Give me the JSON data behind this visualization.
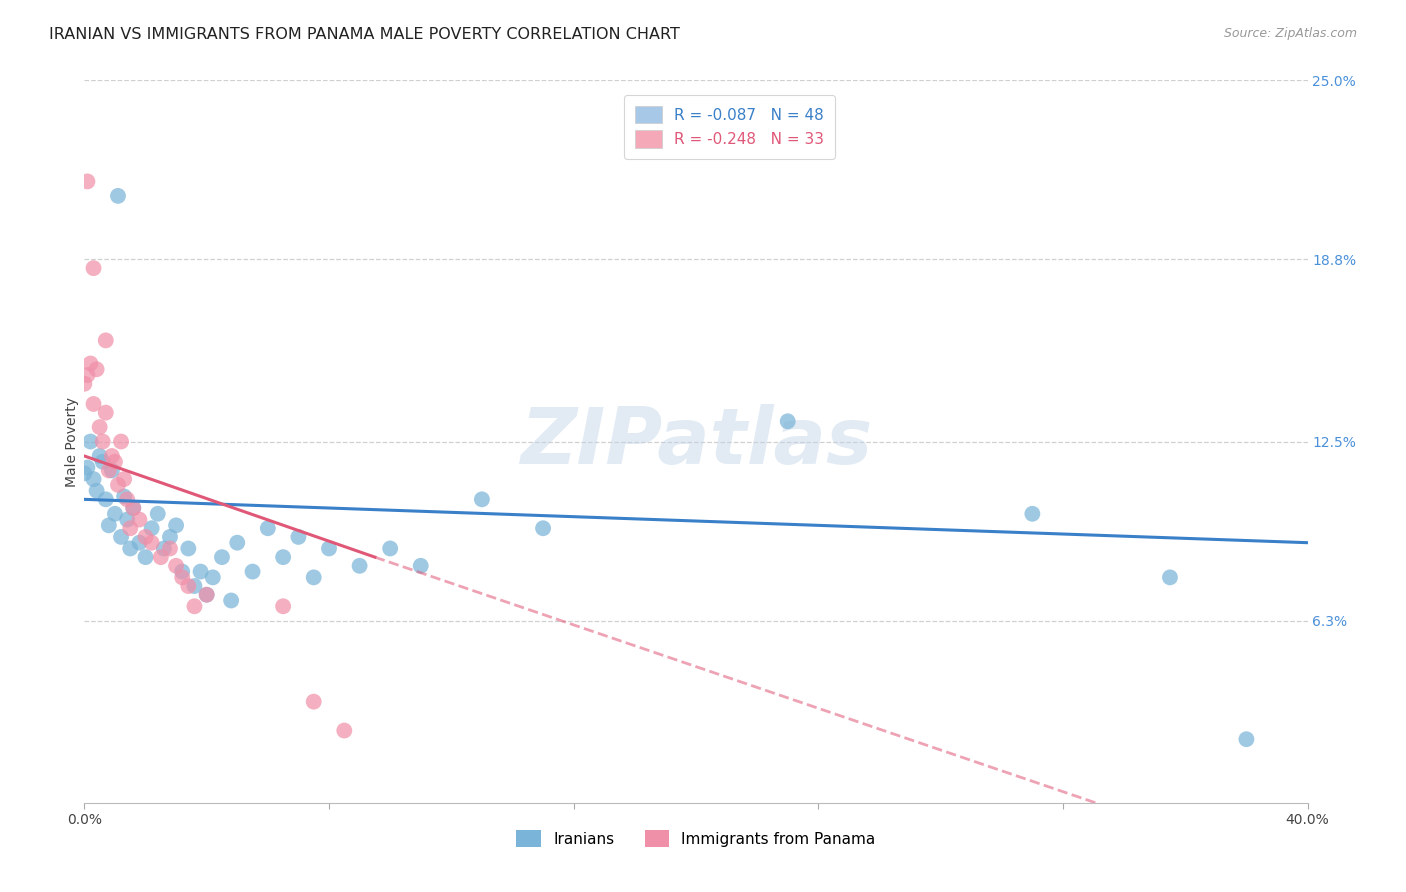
{
  "title": "IRANIAN VS IMMIGRANTS FROM PANAMA MALE POVERTY CORRELATION CHART",
  "source": "Source: ZipAtlas.com",
  "ylabel": "Male Poverty",
  "watermark": "ZIPatlas",
  "xlim": [
    0.0,
    0.4
  ],
  "ylim": [
    0.0,
    0.25
  ],
  "ytick_labels_right": [
    "25.0%",
    "18.8%",
    "12.5%",
    "6.3%"
  ],
  "ytick_values_right": [
    0.25,
    0.188,
    0.125,
    0.063
  ],
  "legend_entries": [
    {
      "label": "R = -0.087   N = 48",
      "color": "#a8c8e8"
    },
    {
      "label": "R = -0.248   N = 33",
      "color": "#f4a8b8"
    }
  ],
  "iranians_color": "#7ab4d8",
  "panama_color": "#f090a8",
  "trendline_iranian_color": "#3a80c8",
  "trendline_panama_color": "#e05878",
  "iranians_data": [
    [
      0.0,
      0.114
    ],
    [
      0.001,
      0.116
    ],
    [
      0.002,
      0.125
    ],
    [
      0.003,
      0.112
    ],
    [
      0.004,
      0.108
    ],
    [
      0.005,
      0.12
    ],
    [
      0.006,
      0.118
    ],
    [
      0.007,
      0.105
    ],
    [
      0.008,
      0.096
    ],
    [
      0.009,
      0.115
    ],
    [
      0.01,
      0.1
    ],
    [
      0.011,
      0.21
    ],
    [
      0.012,
      0.092
    ],
    [
      0.013,
      0.106
    ],
    [
      0.014,
      0.098
    ],
    [
      0.015,
      0.088
    ],
    [
      0.016,
      0.102
    ],
    [
      0.018,
      0.09
    ],
    [
      0.02,
      0.085
    ],
    [
      0.022,
      0.095
    ],
    [
      0.024,
      0.1
    ],
    [
      0.026,
      0.088
    ],
    [
      0.028,
      0.092
    ],
    [
      0.03,
      0.096
    ],
    [
      0.032,
      0.08
    ],
    [
      0.034,
      0.088
    ],
    [
      0.036,
      0.075
    ],
    [
      0.038,
      0.08
    ],
    [
      0.04,
      0.072
    ],
    [
      0.042,
      0.078
    ],
    [
      0.045,
      0.085
    ],
    [
      0.048,
      0.07
    ],
    [
      0.05,
      0.09
    ],
    [
      0.055,
      0.08
    ],
    [
      0.06,
      0.095
    ],
    [
      0.065,
      0.085
    ],
    [
      0.07,
      0.092
    ],
    [
      0.075,
      0.078
    ],
    [
      0.08,
      0.088
    ],
    [
      0.09,
      0.082
    ],
    [
      0.1,
      0.088
    ],
    [
      0.11,
      0.082
    ],
    [
      0.13,
      0.105
    ],
    [
      0.15,
      0.095
    ],
    [
      0.23,
      0.132
    ],
    [
      0.31,
      0.1
    ],
    [
      0.355,
      0.078
    ],
    [
      0.38,
      0.022
    ]
  ],
  "panama_data": [
    [
      0.0,
      0.145
    ],
    [
      0.001,
      0.148
    ],
    [
      0.002,
      0.152
    ],
    [
      0.003,
      0.138
    ],
    [
      0.004,
      0.15
    ],
    [
      0.005,
      0.13
    ],
    [
      0.006,
      0.125
    ],
    [
      0.007,
      0.135
    ],
    [
      0.008,
      0.115
    ],
    [
      0.009,
      0.12
    ],
    [
      0.01,
      0.118
    ],
    [
      0.011,
      0.11
    ],
    [
      0.012,
      0.125
    ],
    [
      0.013,
      0.112
    ],
    [
      0.014,
      0.105
    ],
    [
      0.015,
      0.095
    ],
    [
      0.016,
      0.102
    ],
    [
      0.018,
      0.098
    ],
    [
      0.02,
      0.092
    ],
    [
      0.022,
      0.09
    ],
    [
      0.025,
      0.085
    ],
    [
      0.028,
      0.088
    ],
    [
      0.03,
      0.082
    ],
    [
      0.032,
      0.078
    ],
    [
      0.034,
      0.075
    ],
    [
      0.036,
      0.068
    ],
    [
      0.04,
      0.072
    ],
    [
      0.001,
      0.215
    ],
    [
      0.003,
      0.185
    ],
    [
      0.007,
      0.16
    ],
    [
      0.065,
      0.068
    ],
    [
      0.075,
      0.035
    ],
    [
      0.085,
      0.025
    ]
  ],
  "background_color": "#ffffff",
  "grid_color": "#d0d0d0"
}
